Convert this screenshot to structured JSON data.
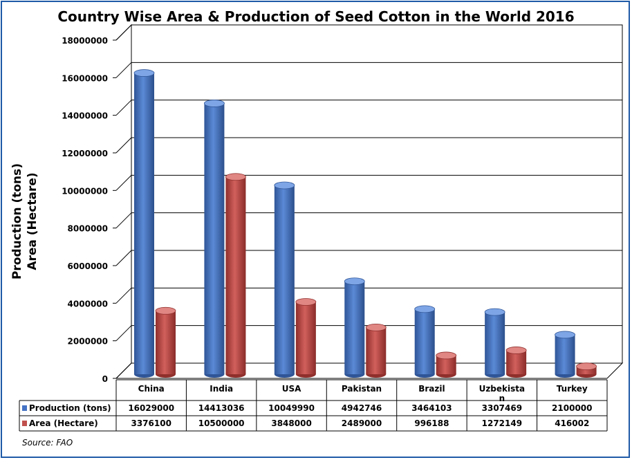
{
  "source": "Source: FAO",
  "chart_data": {
    "type": "bar",
    "title": "Country Wise Area & Production of Seed Cotton in the World 2016",
    "ylabel": [
      "Production (tons)",
      "Area (Hectare)"
    ],
    "xlabel": "",
    "ylim": [
      0,
      18000000
    ],
    "yticks": [
      "0",
      "2000000",
      "4000000",
      "6000000",
      "8000000",
      "10000000",
      "12000000",
      "14000000",
      "16000000",
      "18000000"
    ],
    "grid": true,
    "legend": "data-table-left",
    "categories": [
      "China",
      "India",
      "USA",
      "Pakistan",
      "Brazil",
      "Uzbekistan",
      "Turkey"
    ],
    "category_labels": [
      "China",
      "India",
      "USA",
      "Pakistan",
      "Brazil",
      "Uzbekista\nn",
      "Turkey"
    ],
    "series": [
      {
        "name": "Production (tons)",
        "color": "#4472c4",
        "values": [
          16029000,
          14413036,
          10049990,
          4942746,
          3464103,
          3307469,
          2100000
        ]
      },
      {
        "name": "Area (Hectare)",
        "color": "#c0504d",
        "values": [
          3376100,
          10500000,
          3848000,
          2489000,
          996188,
          1272149,
          416002
        ]
      }
    ]
  }
}
